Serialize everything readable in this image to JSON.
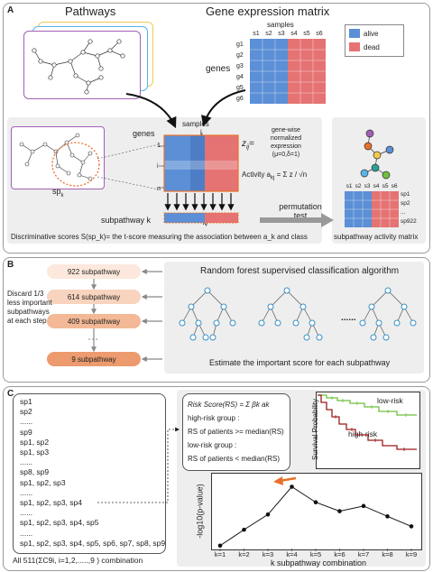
{
  "panelA": {
    "label": "A",
    "pathways_title": "Pathways",
    "matrix_title": "Gene expression matrix",
    "samples_label": "samples",
    "sample_cols": [
      "s1",
      "s2",
      "s3",
      "s4",
      "s5",
      "s6"
    ],
    "gene_rows": [
      "g1",
      "g2",
      "g3",
      "g4",
      "g5",
      "g6"
    ],
    "genes_label": "genes",
    "legend": [
      {
        "name": "alive",
        "color": "#5b8fd6"
      },
      {
        "name": "dead",
        "color": "#e57373"
      }
    ],
    "inner_samples": "samples",
    "inner_j": "j",
    "inner_genes": "genes",
    "row_idx": [
      "1",
      "i",
      "n"
    ],
    "zij": "z",
    "zij_sub": "ij",
    "zij_eq": "=",
    "zij_desc": [
      "gene-wise",
      "normalized",
      "expression",
      "(μ=0,δ=1)"
    ],
    "activity_label": "Activity a",
    "activity_sub": "kj",
    "activity_eq": "= Σ z / √n",
    "spk": "sp",
    "spk_sub": "k",
    "subpathway_k": "subpathway k",
    "akj": "a",
    "akj_sub": "kj",
    "permutation": [
      "permutation",
      "test"
    ],
    "discriminative": "Discriminative scores S(sp_k)= the t-score measuring the association between a_k and class",
    "act_cols": [
      "s1",
      "s2",
      "s3",
      "s4",
      "s5",
      "s6"
    ],
    "act_rows": [
      "sp1",
      "sp2",
      "...",
      "sp922"
    ],
    "act_matrix_title": "subpathway activity matrix",
    "colors": {
      "alive": "#5b8fd6",
      "dead": "#e57373",
      "panel_bg": "#eeeeee",
      "spk_circle": "#e8702a"
    }
  },
  "panelB": {
    "label": "B",
    "steps": [
      "922 subpathway",
      "614 subpathway",
      "409 subpathway",
      "9  subpathway"
    ],
    "step_colors": [
      "#fce8dc",
      "#f8d4bf",
      "#f3b896",
      "#ec9a6e"
    ],
    "discard": [
      "Discard 1/3",
      "less important",
      "subpathways",
      "at each step"
    ],
    "rf_title": "Random forest supervised classification algorithm",
    "rf_dots": "......",
    "rf_sub": "Estimate the important score for each subpathway"
  },
  "panelC": {
    "label": "C",
    "list": [
      "sp1",
      "sp2",
      "......",
      "sp9",
      "sp1, sp2",
      "sp1, sp3",
      "......",
      "sp8, sp9",
      "sp1, sp2, sp3",
      "......",
      "sp1, sp2, sp3, sp4",
      "......",
      "sp1, sp2, sp3, sp4, sp5",
      "......",
      "sp1, sp2, sp3, sp4, sp5, sp6, sp7, sp8, sp9"
    ],
    "combo": "All 511(ΣC9i, i=1,2,.....,9 ) combination",
    "risk_lines": [
      "Risk Score(RS) = Σ βk ak",
      "high-risk group :",
      "RS of patients >= median(RS)",
      "low-risk group :",
      "RS of patients < median(RS)"
    ],
    "surv_ylabel": "Survival Probability",
    "low_risk": "low-risk",
    "high_risk": "high-risk",
    "line_ylabel": "-log10(p-value)",
    "line_xlabel": "k subpathway combination",
    "colors": {
      "low": "#6fbf3f",
      "high": "#9b1b1b",
      "arrow": "#e8702a"
    }
  },
  "chart_data": {
    "type": "line",
    "x": [
      "k=1",
      "k=2",
      "k=3",
      "k=4",
      "k=5",
      "k=6",
      "k=7",
      "k=8",
      "k=9"
    ],
    "series": [
      {
        "values": [
          0.3,
          4.6,
          8.7,
          16.2,
          12.0,
          9.6,
          11.0,
          8.2,
          5.5
        ]
      }
    ],
    "ylim": [
      0,
      19
    ],
    "xlabel": "k subpathway combination",
    "ylabel": "-log10(p-value)",
    "highlight": "k=4"
  }
}
